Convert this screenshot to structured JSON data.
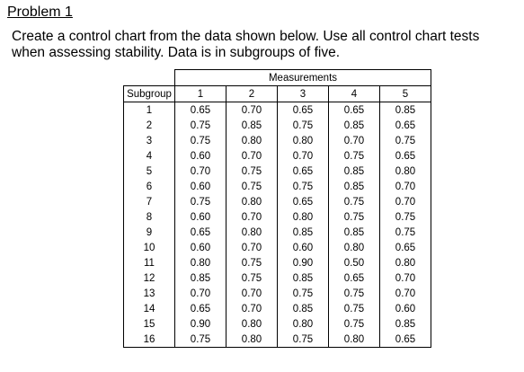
{
  "problem": {
    "heading": "Problem 1",
    "line1": "Create a control chart from the data shown below.  Use all control chart tests",
    "line2": "when assessing stability. Data is in subgroups of five."
  },
  "table": {
    "group_header": "Measurements",
    "subgroup_header": "Subgroup",
    "columns": [
      "1",
      "2",
      "3",
      "4",
      "5"
    ],
    "rows": [
      {
        "subgroup": "1",
        "values": [
          "0.65",
          "0.70",
          "0.65",
          "0.65",
          "0.85"
        ]
      },
      {
        "subgroup": "2",
        "values": [
          "0.75",
          "0.85",
          "0.75",
          "0.85",
          "0.65"
        ]
      },
      {
        "subgroup": "3",
        "values": [
          "0.75",
          "0.80",
          "0.80",
          "0.70",
          "0.75"
        ]
      },
      {
        "subgroup": "4",
        "values": [
          "0.60",
          "0.70",
          "0.70",
          "0.75",
          "0.65"
        ]
      },
      {
        "subgroup": "5",
        "values": [
          "0.70",
          "0.75",
          "0.65",
          "0.85",
          "0.80"
        ]
      },
      {
        "subgroup": "6",
        "values": [
          "0.60",
          "0.75",
          "0.75",
          "0.85",
          "0.70"
        ]
      },
      {
        "subgroup": "7",
        "values": [
          "0.75",
          "0.80",
          "0.65",
          "0.75",
          "0.70"
        ]
      },
      {
        "subgroup": "8",
        "values": [
          "0.60",
          "0.70",
          "0.80",
          "0.75",
          "0.75"
        ]
      },
      {
        "subgroup": "9",
        "values": [
          "0.65",
          "0.80",
          "0.85",
          "0.85",
          "0.75"
        ]
      },
      {
        "subgroup": "10",
        "values": [
          "0.60",
          "0.70",
          "0.60",
          "0.80",
          "0.65"
        ]
      },
      {
        "subgroup": "11",
        "values": [
          "0.80",
          "0.75",
          "0.90",
          "0.50",
          "0.80"
        ]
      },
      {
        "subgroup": "12",
        "values": [
          "0.85",
          "0.75",
          "0.85",
          "0.65",
          "0.70"
        ]
      },
      {
        "subgroup": "13",
        "values": [
          "0.70",
          "0.70",
          "0.75",
          "0.75",
          "0.70"
        ]
      },
      {
        "subgroup": "14",
        "values": [
          "0.65",
          "0.70",
          "0.85",
          "0.75",
          "0.60"
        ]
      },
      {
        "subgroup": "15",
        "values": [
          "0.90",
          "0.80",
          "0.80",
          "0.75",
          "0.85"
        ]
      },
      {
        "subgroup": "16",
        "values": [
          "0.75",
          "0.80",
          "0.75",
          "0.80",
          "0.65"
        ]
      }
    ]
  }
}
